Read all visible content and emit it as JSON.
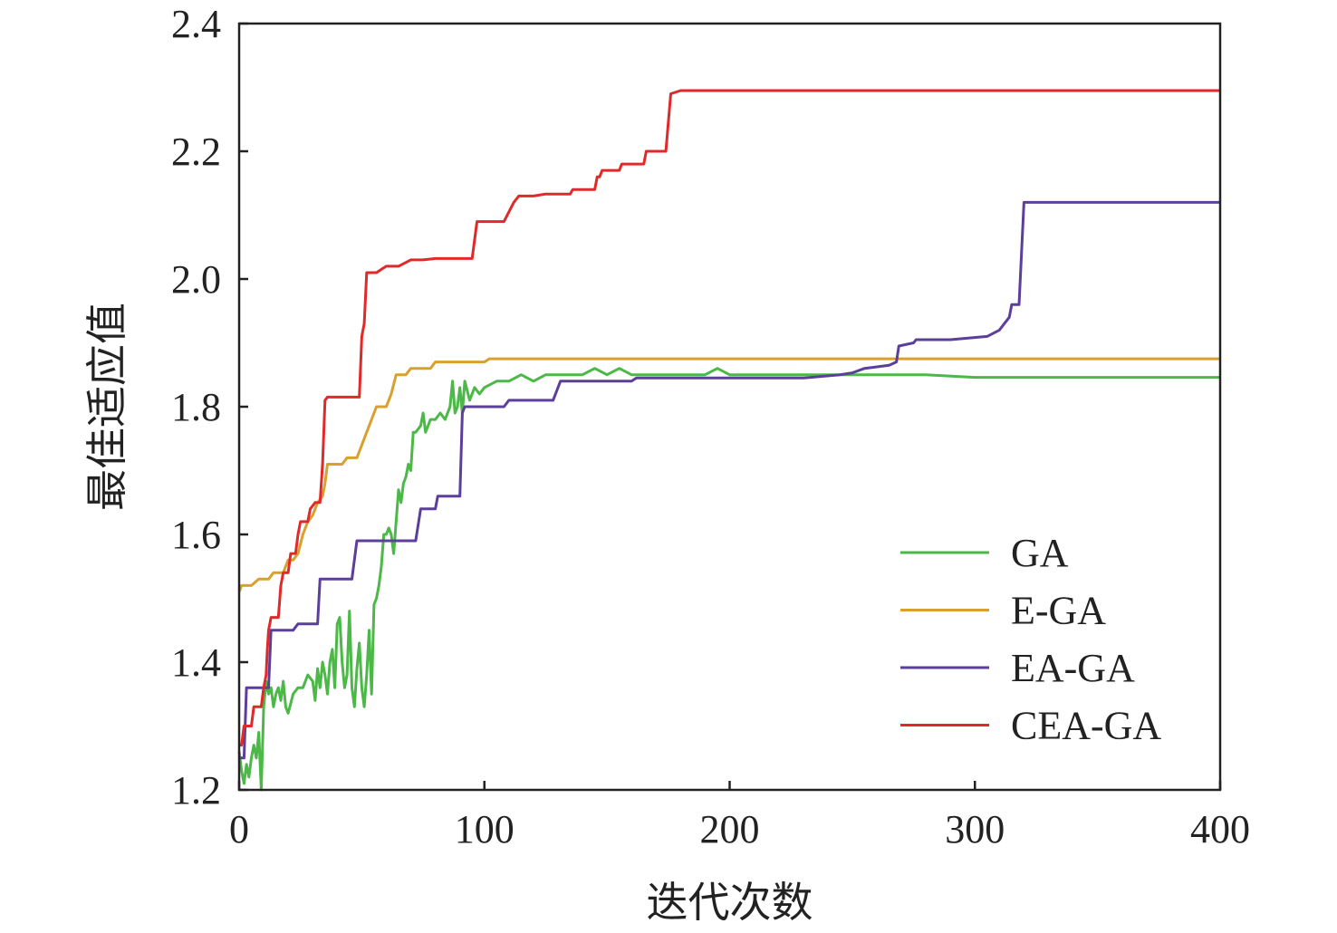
{
  "chart_data": {
    "type": "line",
    "title": "",
    "xlabel": "迭代次数",
    "ylabel": "最佳适应值",
    "xlim": [
      0,
      400
    ],
    "ylim": [
      1.2,
      2.4
    ],
    "xticks": [
      0,
      100,
      200,
      300,
      400
    ],
    "yticks": [
      1.2,
      1.4,
      1.6,
      1.8,
      2.0,
      2.2,
      2.4
    ],
    "xtick_labels": [
      "0",
      "100",
      "200",
      "300",
      "400"
    ],
    "ytick_labels": [
      "1.2",
      "1.4",
      "1.6",
      "1.8",
      "2.0",
      "2.2",
      "2.4"
    ],
    "grid": false,
    "legend_position": "bottom-right",
    "series": [
      {
        "name": "GA",
        "color": "#4cb848",
        "points": [
          [
            0,
            1.26
          ],
          [
            1,
            1.23
          ],
          [
            2,
            1.21
          ],
          [
            3,
            1.24
          ],
          [
            4,
            1.22
          ],
          [
            5,
            1.25
          ],
          [
            6,
            1.27
          ],
          [
            7,
            1.25
          ],
          [
            8,
            1.29
          ],
          [
            9,
            1.2
          ],
          [
            10,
            1.33
          ],
          [
            11,
            1.37
          ],
          [
            12,
            1.35
          ],
          [
            13,
            1.36
          ],
          [
            14,
            1.33
          ],
          [
            15,
            1.35
          ],
          [
            16,
            1.36
          ],
          [
            17,
            1.34
          ],
          [
            18,
            1.37
          ],
          [
            19,
            1.33
          ],
          [
            20,
            1.32
          ],
          [
            22,
            1.35
          ],
          [
            24,
            1.36
          ],
          [
            26,
            1.36
          ],
          [
            28,
            1.38
          ],
          [
            30,
            1.37
          ],
          [
            31,
            1.34
          ],
          [
            32,
            1.39
          ],
          [
            33,
            1.36
          ],
          [
            34,
            1.4
          ],
          [
            35,
            1.38
          ],
          [
            36,
            1.35
          ],
          [
            37,
            1.4
          ],
          [
            38,
            1.42
          ],
          [
            39,
            1.36
          ],
          [
            40,
            1.46
          ],
          [
            41,
            1.47
          ],
          [
            42,
            1.4
          ],
          [
            43,
            1.36
          ],
          [
            44,
            1.38
          ],
          [
            45,
            1.48
          ],
          [
            46,
            1.36
          ],
          [
            47,
            1.33
          ],
          [
            48,
            1.39
          ],
          [
            49,
            1.43
          ],
          [
            50,
            1.36
          ],
          [
            51,
            1.33
          ],
          [
            52,
            1.38
          ],
          [
            53,
            1.45
          ],
          [
            54,
            1.35
          ],
          [
            55,
            1.49
          ],
          [
            56,
            1.5
          ],
          [
            57,
            1.52
          ],
          [
            58,
            1.55
          ],
          [
            59,
            1.6
          ],
          [
            60,
            1.6
          ],
          [
            61,
            1.61
          ],
          [
            62,
            1.6
          ],
          [
            63,
            1.57
          ],
          [
            64,
            1.62
          ],
          [
            65,
            1.67
          ],
          [
            66,
            1.65
          ],
          [
            67,
            1.68
          ],
          [
            68,
            1.69
          ],
          [
            69,
            1.71
          ],
          [
            70,
            1.7
          ],
          [
            71,
            1.76
          ],
          [
            72,
            1.76
          ],
          [
            74,
            1.77
          ],
          [
            75,
            1.79
          ],
          [
            76,
            1.76
          ],
          [
            78,
            1.78
          ],
          [
            80,
            1.78
          ],
          [
            82,
            1.79
          ],
          [
            84,
            1.78
          ],
          [
            86,
            1.8
          ],
          [
            87,
            1.84
          ],
          [
            88,
            1.79
          ],
          [
            89,
            1.8
          ],
          [
            90,
            1.83
          ],
          [
            91,
            1.79
          ],
          [
            92,
            1.84
          ],
          [
            94,
            1.81
          ],
          [
            96,
            1.83
          ],
          [
            98,
            1.82
          ],
          [
            100,
            1.83
          ],
          [
            105,
            1.84
          ],
          [
            110,
            1.84
          ],
          [
            115,
            1.85
          ],
          [
            120,
            1.84
          ],
          [
            125,
            1.85
          ],
          [
            130,
            1.85
          ],
          [
            135,
            1.85
          ],
          [
            140,
            1.85
          ],
          [
            145,
            1.86
          ],
          [
            150,
            1.85
          ],
          [
            155,
            1.86
          ],
          [
            160,
            1.85
          ],
          [
            165,
            1.85
          ],
          [
            170,
            1.85
          ],
          [
            175,
            1.85
          ],
          [
            180,
            1.85
          ],
          [
            185,
            1.85
          ],
          [
            190,
            1.85
          ],
          [
            195,
            1.86
          ],
          [
            200,
            1.85
          ],
          [
            205,
            1.85
          ],
          [
            210,
            1.85
          ],
          [
            215,
            1.85
          ],
          [
            220,
            1.85
          ],
          [
            240,
            1.85
          ],
          [
            260,
            1.85
          ],
          [
            280,
            1.85
          ],
          [
            300,
            1.846
          ],
          [
            320,
            1.846
          ],
          [
            340,
            1.846
          ],
          [
            360,
            1.846
          ],
          [
            380,
            1.846
          ],
          [
            400,
            1.846
          ]
        ]
      },
      {
        "name": "E-GA",
        "color": "#d9a030",
        "points": [
          [
            0,
            1.51
          ],
          [
            1,
            1.52
          ],
          [
            5,
            1.52
          ],
          [
            8,
            1.53
          ],
          [
            12,
            1.53
          ],
          [
            14,
            1.54
          ],
          [
            18,
            1.54
          ],
          [
            20,
            1.56
          ],
          [
            22,
            1.56
          ],
          [
            24,
            1.57
          ],
          [
            26,
            1.6
          ],
          [
            28,
            1.62
          ],
          [
            30,
            1.63
          ],
          [
            32,
            1.65
          ],
          [
            34,
            1.66
          ],
          [
            35,
            1.68
          ],
          [
            36,
            1.71
          ],
          [
            40,
            1.71
          ],
          [
            42,
            1.71
          ],
          [
            44,
            1.72
          ],
          [
            48,
            1.72
          ],
          [
            50,
            1.74
          ],
          [
            52,
            1.76
          ],
          [
            54,
            1.78
          ],
          [
            56,
            1.8
          ],
          [
            60,
            1.8
          ],
          [
            62,
            1.82
          ],
          [
            64,
            1.85
          ],
          [
            68,
            1.85
          ],
          [
            70,
            1.86
          ],
          [
            75,
            1.86
          ],
          [
            78,
            1.86
          ],
          [
            80,
            1.87
          ],
          [
            90,
            1.87
          ],
          [
            100,
            1.87
          ],
          [
            102,
            1.875
          ],
          [
            150,
            1.875
          ],
          [
            200,
            1.875
          ],
          [
            250,
            1.875
          ],
          [
            300,
            1.875
          ],
          [
            350,
            1.875
          ],
          [
            400,
            1.875
          ]
        ]
      },
      {
        "name": "EA-GA",
        "color": "#5b3f9a",
        "points": [
          [
            0,
            1.25
          ],
          [
            2,
            1.25
          ],
          [
            3,
            1.36
          ],
          [
            12,
            1.36
          ],
          [
            13,
            1.45
          ],
          [
            22,
            1.45
          ],
          [
            24,
            1.46
          ],
          [
            32,
            1.46
          ],
          [
            33,
            1.53
          ],
          [
            46,
            1.53
          ],
          [
            48,
            1.59
          ],
          [
            72,
            1.59
          ],
          [
            74,
            1.64
          ],
          [
            80,
            1.64
          ],
          [
            81,
            1.66
          ],
          [
            90,
            1.66
          ],
          [
            91,
            1.79
          ],
          [
            92,
            1.8
          ],
          [
            108,
            1.8
          ],
          [
            110,
            1.81
          ],
          [
            128,
            1.81
          ],
          [
            131,
            1.84
          ],
          [
            160,
            1.84
          ],
          [
            162,
            1.845
          ],
          [
            230,
            1.845
          ],
          [
            245,
            1.85
          ],
          [
            250,
            1.853
          ],
          [
            255,
            1.86
          ],
          [
            265,
            1.865
          ],
          [
            268,
            1.87
          ],
          [
            269,
            1.895
          ],
          [
            275,
            1.9
          ],
          [
            276,
            1.905
          ],
          [
            290,
            1.905
          ],
          [
            305,
            1.91
          ],
          [
            310,
            1.92
          ],
          [
            312,
            1.93
          ],
          [
            314,
            1.94
          ],
          [
            315,
            1.96
          ],
          [
            318,
            1.96
          ],
          [
            320,
            2.12
          ],
          [
            400,
            2.12
          ]
        ]
      },
      {
        "name": "CEA-GA",
        "color": "#e02a2a",
        "points": [
          [
            0,
            1.27
          ],
          [
            1,
            1.27
          ],
          [
            2,
            1.3
          ],
          [
            5,
            1.3
          ],
          [
            6,
            1.33
          ],
          [
            9,
            1.33
          ],
          [
            10,
            1.36
          ],
          [
            11,
            1.38
          ],
          [
            11.5,
            1.42
          ],
          [
            12,
            1.45
          ],
          [
            13,
            1.47
          ],
          [
            16,
            1.47
          ],
          [
            17,
            1.52
          ],
          [
            18,
            1.54
          ],
          [
            20,
            1.54
          ],
          [
            21,
            1.57
          ],
          [
            23,
            1.57
          ],
          [
            24,
            1.6
          ],
          [
            25,
            1.62
          ],
          [
            28,
            1.62
          ],
          [
            29,
            1.64
          ],
          [
            31,
            1.65
          ],
          [
            33,
            1.65
          ],
          [
            34,
            1.71
          ],
          [
            35,
            1.81
          ],
          [
            36,
            1.815
          ],
          [
            49,
            1.815
          ],
          [
            50,
            1.91
          ],
          [
            51,
            1.93
          ],
          [
            52,
            2.01
          ],
          [
            56,
            2.01
          ],
          [
            58,
            2.015
          ],
          [
            60,
            2.02
          ],
          [
            65,
            2.02
          ],
          [
            70,
            2.03
          ],
          [
            75,
            2.03
          ],
          [
            80,
            2.032
          ],
          [
            95,
            2.032
          ],
          [
            97,
            2.09
          ],
          [
            103,
            2.09
          ],
          [
            108,
            2.09
          ],
          [
            112,
            2.12
          ],
          [
            114,
            2.13
          ],
          [
            120,
            2.13
          ],
          [
            125,
            2.133
          ],
          [
            135,
            2.133
          ],
          [
            136,
            2.14
          ],
          [
            140,
            2.14
          ],
          [
            145,
            2.14
          ],
          [
            146,
            2.16
          ],
          [
            147,
            2.16
          ],
          [
            148,
            2.17
          ],
          [
            155,
            2.17
          ],
          [
            156,
            2.18
          ],
          [
            165,
            2.18
          ],
          [
            166,
            2.2
          ],
          [
            170,
            2.2
          ],
          [
            174,
            2.2
          ],
          [
            176,
            2.29
          ],
          [
            180,
            2.295
          ],
          [
            200,
            2.295
          ],
          [
            250,
            2.295
          ],
          [
            300,
            2.295
          ],
          [
            350,
            2.295
          ],
          [
            400,
            2.295
          ]
        ]
      }
    ]
  }
}
